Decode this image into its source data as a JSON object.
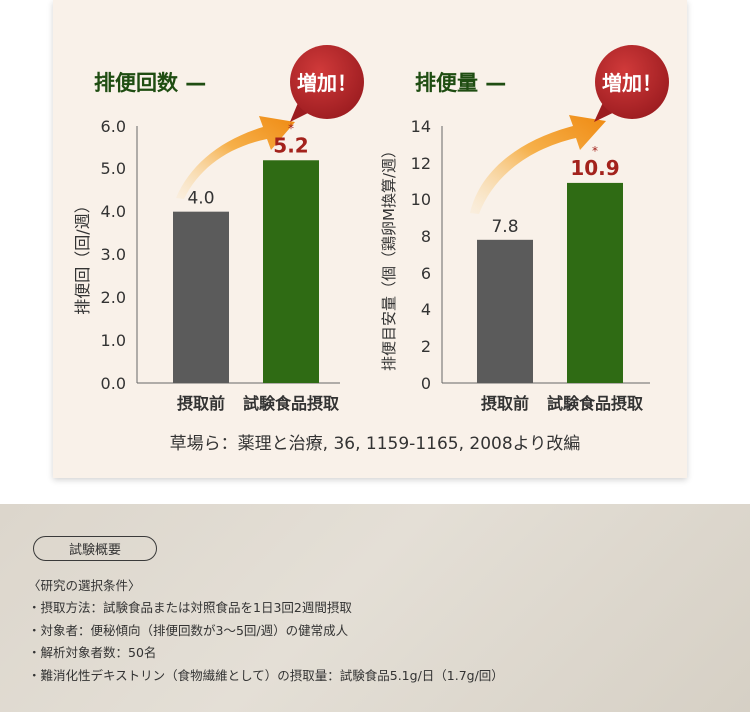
{
  "citation": "草場ら：薬理と治療, 36, 1159-1165, 2008より改編",
  "badge_text": "増加！",
  "accent_colors": {
    "title": "#1f4d12",
    "bar_before": "#5b5b5b",
    "bar_after": "#2f6b14",
    "badge": "#b3262a",
    "value_after": "#a3221c",
    "arrow": "#f29b22"
  },
  "summary": {
    "pill_label": "試験概要",
    "conditions": [
      "〈研究の選択条件〉",
      "・摂取方法：試験食品または対照食品を1日3回2週間摂取",
      "・対象者：便秘傾向（排便回数が3〜5回/週）の健常成人",
      "・解析対象者数：50名",
      "・難消化性デキストリン（食物繊維として）の摂取量：試験食品5.1g/日（1.7g/回）"
    ]
  },
  "chart_data": [
    {
      "type": "bar",
      "title": "排便回数 —",
      "ylabel": "排便回（回/週）",
      "categories": [
        "摂取前",
        "試験食品摂取"
      ],
      "values": [
        4.0,
        5.2
      ],
      "value_labels": [
        "4.0",
        "5.2"
      ],
      "significance": [
        null,
        "*"
      ],
      "ylim": [
        0,
        6
      ],
      "yticks": [
        "0.0",
        "1.0",
        "2.0",
        "3.0",
        "4.0",
        "5.0",
        "6.0"
      ],
      "grid": false
    },
    {
      "type": "bar",
      "title": "排便量 —",
      "ylabel": "排便目安量（個（鶏卵M換算/週）",
      "categories": [
        "摂取前",
        "試験食品摂取"
      ],
      "values": [
        7.8,
        10.9
      ],
      "value_labels": [
        "7.8",
        "10.9"
      ],
      "significance": [
        null,
        "*"
      ],
      "ylim": [
        0,
        14
      ],
      "yticks": [
        "0",
        "2",
        "4",
        "6",
        "8",
        "10",
        "12",
        "14"
      ],
      "grid": false
    }
  ]
}
